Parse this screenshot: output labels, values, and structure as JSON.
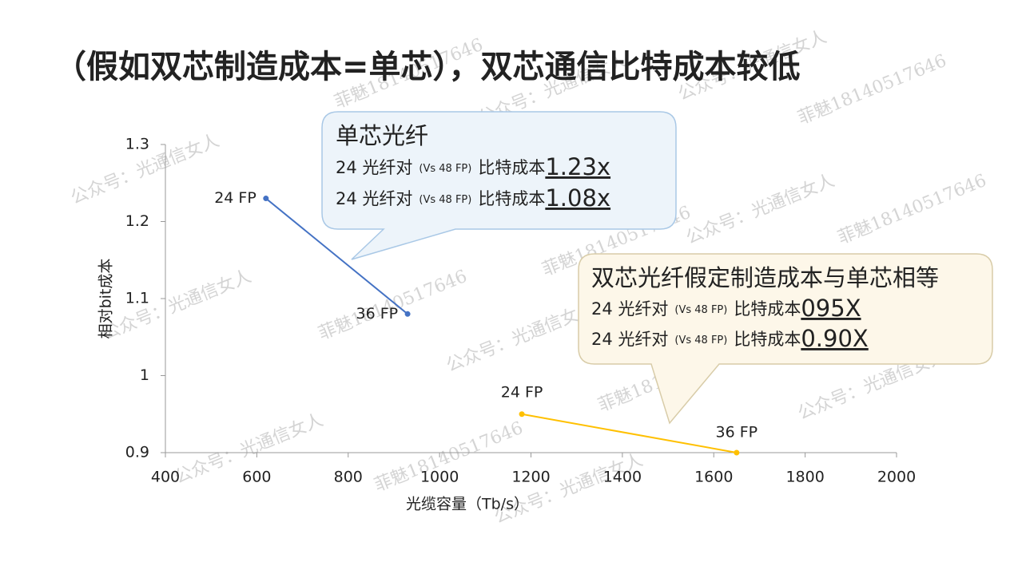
{
  "title": "（假如双芯制造成本=单芯），双芯通信比特成本较低",
  "watermarks": [
    "公众号：光通信女人",
    "菲魅18140517646"
  ],
  "chart_data": {
    "type": "line",
    "xlabel": "光缆容量（Tb/s）",
    "ylabel": "相对bit成本",
    "xlim": [
      400,
      2000
    ],
    "xticks": [
      400,
      600,
      800,
      1000,
      1200,
      1400,
      1600,
      1800,
      2000
    ],
    "ylim": [
      0.9,
      1.3
    ],
    "yticks": [
      0.9,
      1,
      1.1,
      1.2,
      1.3
    ],
    "series": [
      {
        "color": "#4472c4",
        "x": [
          620,
          930
        ],
        "values": [
          1.23,
          1.08
        ],
        "point_labels": [
          "24 FP",
          "36 FP"
        ]
      },
      {
        "color": "#ffc000",
        "x": [
          1180,
          1650
        ],
        "values": [
          0.95,
          0.9
        ],
        "point_labels": [
          "24 FP",
          "36 FP"
        ]
      }
    ],
    "annotations": [
      {
        "heading": "单芯光纤",
        "lines": [
          {
            "prefix": "24 光纤对",
            "note": "(Vs 48 FP)",
            "label": "比特成本",
            "value": "1.23x"
          },
          {
            "prefix": "24 光纤对",
            "note": "(Vs 48 FP)",
            "label": "比特成本",
            "value": "1.08x"
          }
        ]
      },
      {
        "heading": "双芯光纤假定制造成本与单芯相等",
        "lines": [
          {
            "prefix": "24 光纤对",
            "note": "(Vs 48 FP)",
            "label": "比特成本",
            "value": "095X"
          },
          {
            "prefix": "24 光纤对",
            "note": "(Vs 48 FP)",
            "label": "比特成本",
            "value": "0.90X"
          }
        ]
      }
    ]
  }
}
